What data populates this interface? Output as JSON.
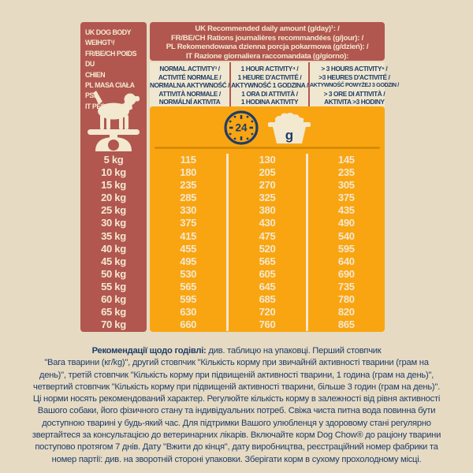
{
  "colors": {
    "background": "#e6dac3",
    "panel_red": "#b15750",
    "orange": "#f9a512",
    "cream": "#f3e8d0",
    "navy": "#1e3d68",
    "divider_orange": "#d78c04",
    "header_strip": "#f0e7d0"
  },
  "weight_panel": {
    "title_lines": [
      "UK DOG BODY",
      "WEIHGT¹/",
      "FR/BE/CH POIDS DU",
      "CHIEN",
      "PL MASA CIAŁA PSA",
      "IT PESO CANE"
    ],
    "weights": [
      "5 kg",
      "10 kg",
      "15 kg",
      "20 kg",
      "25 kg",
      "30 kg",
      "35 kg",
      "40 kg",
      "45 kg",
      "50 kg",
      "55 kg",
      "60 kg",
      "65 kg",
      "70 kg"
    ]
  },
  "daily_header": {
    "lines": [
      "UK Recommended daily amount (g/day)¹: /",
      "FR/BE/CH Rations journalières recommandées (g/jour): /",
      "PL Rekomendowana dzienna porcja pokarmowa (g/dzień): /",
      "IT Razione giornaliera raccomandata (g/giorno):"
    ]
  },
  "activity_columns": [
    {
      "header_lines": [
        "NORMAL ACTIVITY³ /",
        "ACTIVITÉ NORMALE /",
        "NORMALNA AKTYWNOŚĆ /",
        "ATTIVITÀ NORMALE /",
        "NORMÁLNÍ AKTIVITA"
      ],
      "values": [
        115,
        180,
        235,
        285,
        330,
        375,
        415,
        455,
        495,
        530,
        565,
        595,
        630,
        660
      ]
    },
    {
      "header_lines": [
        "1 HOUR ACTIVITY⁴ /",
        "1 HEURE D'ACTIVITÉ /",
        "AKTYWNOŚĆ 1 GODZINA /",
        "1 ORA DI ATTIVITÀ /",
        "1 HODINA AKTIVITY"
      ],
      "values": [
        130,
        205,
        270,
        325,
        380,
        430,
        475,
        520,
        565,
        605,
        645,
        685,
        720,
        760
      ]
    },
    {
      "header_lines": [
        "> 3 HOURS ACTIVITY⁵ /",
        ">3 HEURES D'ACTIVITÉ /",
        "AKTYWNOŚĆ POWYŻEJ 3 GODZIN /",
        "> 3 ORE DI ATTIVITÀ /",
        "AKTIVITA >3 HODINY"
      ],
      "values": [
        145,
        235,
        305,
        375,
        435,
        490,
        540,
        595,
        640,
        690,
        735,
        780,
        820,
        865
      ]
    }
  ],
  "icons": {
    "clock_label": "24",
    "bowl_label": "g",
    "names": [
      "dog-on-scale-icon",
      "clock-24h-icon",
      "food-bowl-icon"
    ]
  },
  "feeding_note": {
    "heading": "Рекомендації щодо годівлі:",
    "lines": [
      " див. таблицю на упаковці. Перший стовпчик",
      "\"Вага тварини (кг/kg)\", другий стовпчик \"Кількість корму при звичайній активності тварини (грам на",
      "день)\", третій стовпчик \"Кількість корму при підвищеній активності тварини, 1 година (грам на день)\",",
      "четвертий стовпчик \"Кількість корму при підвищеній активності тварини, більше 3 годин (грам на день)\".",
      "Ці норми носять рекомендований характер. Регулюйте кількість корму в залежності від рівня активності",
      "Вашого собаки, його фізичного стану та індивідуальних потреб. Свіжа чиста питна вода повинна бути",
      "доступною тварині у будь-який час. Для підтримки Вашого улюбленця у здоровому стані регулярно",
      "звертайтеся за консультацією до ветеринарних лікарів. Включайте корм Dog Chow® до раціону тварини",
      "поступово протягом 7 днів. Дату \"Вжити до кінця\", дату виробництва, реєстраційний номер фабрики та",
      "номер партії: див. на зворотній стороні упаковки. Зберігати корм в сухому прохолодному місці."
    ]
  }
}
